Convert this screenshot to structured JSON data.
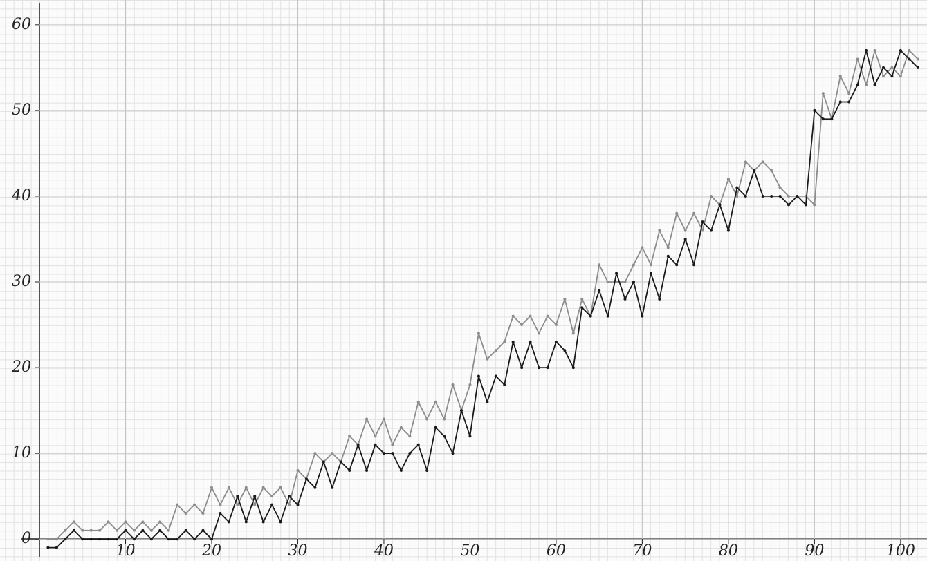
{
  "chart_data": {
    "type": "line",
    "x": [
      1,
      2,
      3,
      4,
      5,
      6,
      7,
      8,
      9,
      10,
      11,
      12,
      13,
      14,
      15,
      16,
      17,
      18,
      19,
      20,
      21,
      22,
      23,
      24,
      25,
      26,
      27,
      28,
      29,
      30,
      31,
      32,
      33,
      34,
      35,
      36,
      37,
      38,
      39,
      40,
      41,
      42,
      43,
      44,
      45,
      46,
      47,
      48,
      49,
      50,
      51,
      52,
      53,
      54,
      55,
      56,
      57,
      58,
      59,
      60,
      61,
      62,
      63,
      64,
      65,
      66,
      67,
      68,
      69,
      70,
      71,
      72,
      73,
      74,
      75,
      76,
      77,
      78,
      79,
      80,
      81,
      82,
      83,
      84,
      85,
      86,
      87,
      88,
      89,
      90,
      91,
      92,
      93,
      94,
      95,
      96,
      97,
      98,
      99,
      100,
      101,
      102
    ],
    "series": [
      {
        "color": "#8c8c8c",
        "values": [
          0,
          0,
          1,
          2,
          1,
          1,
          1,
          2,
          1,
          2,
          1,
          2,
          1,
          2,
          1,
          4,
          3,
          4,
          3,
          6,
          4,
          6,
          4,
          6,
          4,
          6,
          5,
          6,
          4,
          8,
          7,
          10,
          9,
          10,
          9,
          12,
          11,
          14,
          12,
          14,
          11,
          13,
          12,
          16,
          14,
          16,
          14,
          18,
          15,
          18,
          24,
          21,
          22,
          23,
          26,
          25,
          26,
          24,
          26,
          25,
          28,
          24,
          28,
          26,
          32,
          30,
          30,
          30,
          32,
          34,
          32,
          36,
          34,
          38,
          36,
          38,
          36,
          40,
          39,
          42,
          40,
          44,
          43,
          44,
          43,
          41,
          40,
          40,
          40,
          39,
          52,
          49,
          54,
          52,
          56,
          53,
          57,
          54,
          55,
          54,
          57,
          56
        ]
      },
      {
        "color": "#1a1a1a",
        "values": [
          -1,
          -1,
          0,
          1,
          0,
          0,
          0,
          0,
          0,
          1,
          0,
          1,
          0,
          1,
          0,
          0,
          1,
          0,
          1,
          0,
          3,
          2,
          5,
          2,
          5,
          2,
          4,
          2,
          5,
          4,
          7,
          6,
          9,
          6,
          9,
          8,
          11,
          8,
          11,
          10,
          10,
          8,
          10,
          11,
          8,
          13,
          12,
          10,
          15,
          12,
          19,
          16,
          19,
          18,
          23,
          20,
          23,
          20,
          20,
          23,
          22,
          20,
          27,
          26,
          29,
          26,
          31,
          28,
          30,
          26,
          31,
          28,
          33,
          32,
          35,
          32,
          37,
          36,
          39,
          36,
          41,
          40,
          43,
          40,
          40,
          40,
          39,
          40,
          39,
          50,
          49,
          49,
          51,
          51,
          53,
          57,
          53,
          55,
          54,
          57,
          56,
          55
        ]
      }
    ],
    "xlim": [
      0,
      102.5
    ],
    "ylim": [
      -2,
      62
    ],
    "xticks": [
      10,
      20,
      30,
      40,
      50,
      60,
      70,
      80,
      90,
      100
    ],
    "yticks": [
      0,
      10,
      20,
      30,
      40,
      50,
      60
    ],
    "grid": true
  }
}
